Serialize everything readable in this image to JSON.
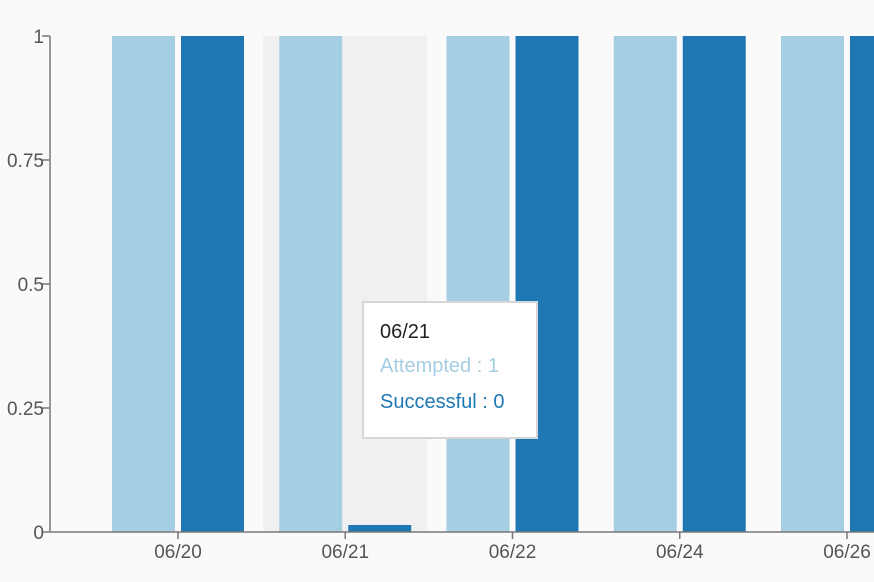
{
  "chart_data": {
    "type": "bar",
    "categories": [
      "06/20",
      "06/21",
      "06/22",
      "06/24",
      "06/26"
    ],
    "series": [
      {
        "name": "Attempted",
        "values": [
          1,
          1,
          1,
          1,
          1
        ],
        "color": "#a6cee3"
      },
      {
        "name": "Successful",
        "values": [
          1,
          0,
          1,
          1,
          1
        ],
        "color": "#1f78b4"
      }
    ],
    "ylim": [
      0,
      1
    ],
    "yticks": [
      "0",
      "0.25",
      "0.5",
      "0.75",
      "1"
    ],
    "highlight_category": "06/21",
    "highlight_color": "#f0f0f0",
    "grid": false
  },
  "tooltip": {
    "date": "06/21",
    "attempted": "Attempted : 1",
    "successful": "Successful : 0"
  }
}
